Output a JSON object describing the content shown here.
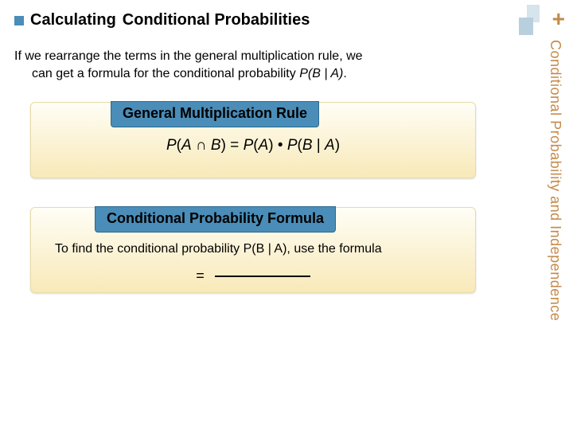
{
  "header": {
    "bullet_color": "#4a8db8",
    "title_bold": "Calculating",
    "title_rest": "Conditional Probabilities"
  },
  "intro": {
    "line1": "If we rearrange the terms in the general multiplication rule, we",
    "line2_prefix": "can get a formula for the conditional probability ",
    "line2_formula": "P(B | A)",
    "line2_suffix": "."
  },
  "block1": {
    "label": "General Multiplication Rule",
    "formula_left": "P",
    "formula_paren_open": "(",
    "formula_A": "A",
    "formula_cap": " ∩ ",
    "formula_B": "B",
    "formula_paren_close": ") = ",
    "formula_PA": "P",
    "formula_pa_open": "(",
    "formula_a2": "A",
    "formula_pa_close": ") • ",
    "formula_PB": "P",
    "formula_pb_open": "(",
    "formula_b2": "B",
    "formula_bar": " | ",
    "formula_a3": "A",
    "formula_end": ")",
    "full": "P(A ∩ B) = P(A) • P(B | A)"
  },
  "block2": {
    "label": "Conditional Probability Formula",
    "subtext": "To find the conditional probability P(B | A), use the formula",
    "eq": "="
  },
  "sidebar": {
    "plus": "+",
    "text": "Conditional Probability and Independence"
  },
  "colors": {
    "accent": "#4a8db8",
    "sidebar_text": "#c48a4a",
    "block_bg_top": "#fffef6",
    "block_bg_bottom": "#f8e9b8"
  }
}
